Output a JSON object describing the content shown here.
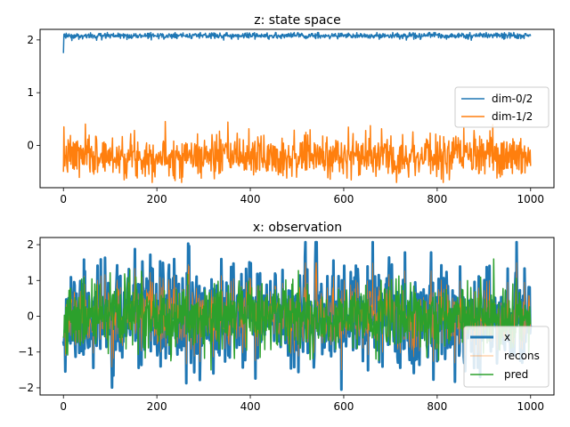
{
  "chart_data": [
    {
      "type": "line",
      "title": "z: state space",
      "xlabel": "",
      "ylabel": "",
      "xlim": [
        -50,
        1050
      ],
      "ylim": [
        -0.8,
        2.2
      ],
      "xticks": [
        0,
        200,
        400,
        600,
        800,
        1000
      ],
      "yticks": [
        0,
        1,
        2
      ],
      "grid": false,
      "legend_position": "center-right",
      "n_points": 1001,
      "series": [
        {
          "name": "dim-0/2",
          "color": "#1f77b4",
          "stroke_width": 1.5,
          "approx": {
            "start": 1.75,
            "mean": 2.08,
            "noise": 0.03,
            "min": 1.92,
            "max": 2.14,
            "seed": 3
          }
        },
        {
          "name": "dim-1/2",
          "color": "#ff7f0e",
          "stroke_width": 1.5,
          "approx": {
            "start": -0.5,
            "mean": -0.2,
            "noise": 0.2,
            "min": -0.7,
            "max": 0.57,
            "seed": 7
          }
        }
      ]
    },
    {
      "type": "line",
      "title": "x: observation",
      "xlabel": "",
      "ylabel": "",
      "xlim": [
        -50,
        1050
      ],
      "ylim": [
        -2.2,
        2.2
      ],
      "xticks": [
        0,
        200,
        400,
        600,
        800,
        1000
      ],
      "yticks": [
        -2,
        -1,
        0,
        1,
        2
      ],
      "grid": false,
      "legend_position": "lower-right",
      "n_points": 1001,
      "series": [
        {
          "name": "x",
          "color": "#1f77b4",
          "stroke_width": 3,
          "approx": {
            "start": -0.7,
            "mean": 0.0,
            "noise": 0.7,
            "min": -2.05,
            "max": 2.07,
            "seed": 11
          }
        },
        {
          "name": "recons",
          "color": "#ff7f0e",
          "stroke_width": 0.6,
          "approx": {
            "start": -0.6,
            "mean": 0.0,
            "noise": 0.5,
            "min": -1.5,
            "max": 1.5,
            "seed": 11
          }
        },
        {
          "name": "pred",
          "color": "#2ca02c",
          "stroke_width": 1.5,
          "approx": {
            "start": -0.6,
            "mean": 0.0,
            "noise": 0.5,
            "min": -1.5,
            "max": 1.6,
            "seed": 19
          }
        }
      ]
    }
  ]
}
